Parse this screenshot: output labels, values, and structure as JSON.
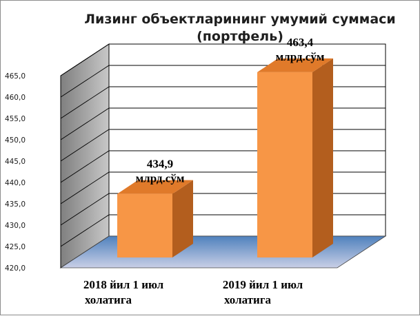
{
  "chart_data": {
    "type": "bar",
    "title_lines": [
      "Лизинг объектларининг умумий суммаси",
      "(портфель)"
    ],
    "categories": [
      [
        "2018 йил 1 июл",
        "холатига"
      ],
      [
        "2019 йил 1 июл",
        "холатига"
      ]
    ],
    "values": [
      434.9,
      463.4
    ],
    "data_labels": [
      [
        "434,9",
        "млрд.сўм"
      ],
      [
        "463,4",
        "млрд.сўм"
      ]
    ],
    "ylim": [
      420,
      465
    ],
    "yticks": [
      420,
      425,
      430,
      435,
      440,
      445,
      450,
      455,
      460,
      465
    ],
    "ytick_labels": [
      "420,0",
      "425,0",
      "430,0",
      "435,0",
      "440,0",
      "445,0",
      "450,0",
      "455,0",
      "460,0",
      "465,0"
    ],
    "grid": true,
    "style": "3d-column",
    "colors": {
      "bar_front": "#f79646",
      "bar_side": "#b35e1e",
      "bar_top": "#e07a2a",
      "floor": "#4f81bd",
      "side_wall": "#a6a6a6",
      "back_wall": "#ffffff"
    }
  }
}
